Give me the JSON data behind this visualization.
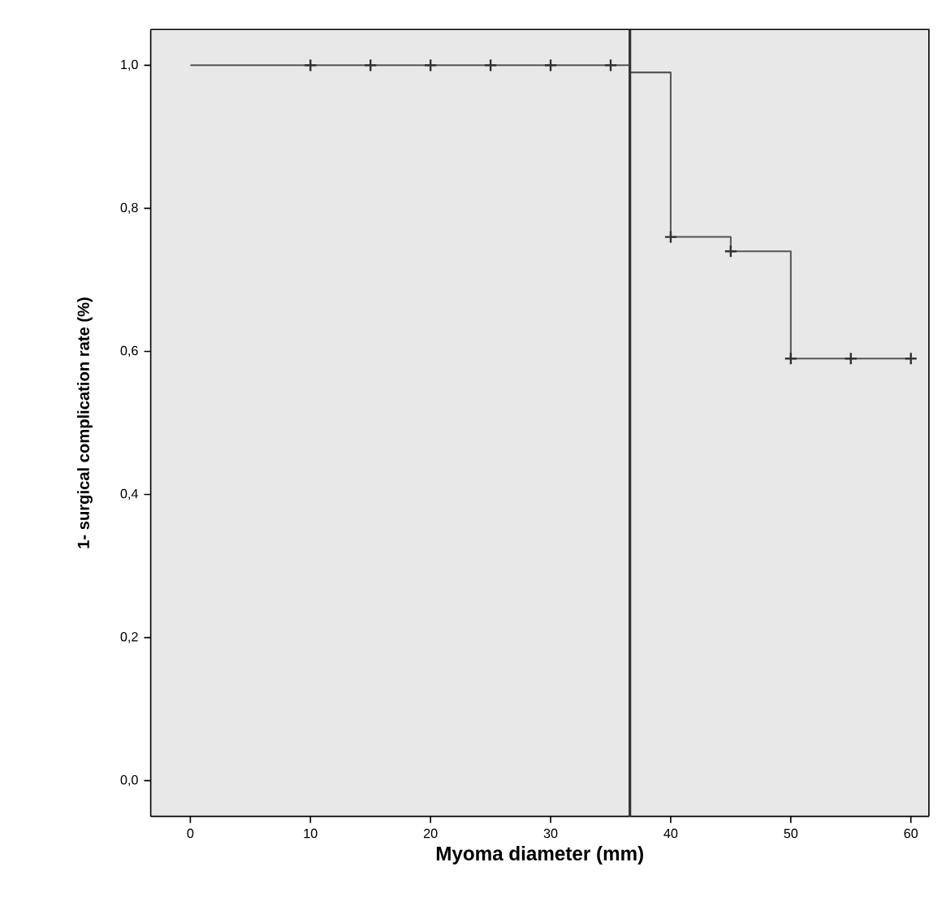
{
  "chart_data": {
    "type": "step",
    "xlabel": "Myoma diameter (mm)",
    "ylabel": "1- surgical complication rate (%)",
    "xlim": [
      -3.3,
      61.5
    ],
    "ylim": [
      -0.05,
      1.05
    ],
    "xticks": [
      0,
      10,
      20,
      30,
      40,
      50,
      60
    ],
    "yticks": [
      {
        "value": 0,
        "label": "0,0"
      },
      {
        "value": 0.2,
        "label": "0,2"
      },
      {
        "value": 0.4,
        "label": "0,4"
      },
      {
        "value": 0.6,
        "label": "0,6"
      },
      {
        "value": 0.8,
        "label": "0,8"
      },
      {
        "value": 1,
        "label": "1,0"
      }
    ],
    "series": [
      {
        "color": "#555555",
        "x": [
          0,
          36.6,
          40,
          45,
          50,
          60
        ],
        "values": [
          1.0,
          0.99,
          0.76,
          0.74,
          0.59,
          0.59
        ],
        "marker": "none"
      },
      {
        "type": "scatter",
        "color": "#333333",
        "x": [
          10,
          15,
          20,
          25,
          30,
          35,
          40,
          45,
          50,
          55,
          60
        ],
        "values": [
          1,
          1,
          1,
          1,
          1,
          1,
          0.76,
          0.74,
          0.59,
          0.59,
          0.59
        ],
        "marker": "cross"
      }
    ],
    "ref_lines": [
      {
        "axis": "x",
        "value": 36.6,
        "color": "#333333"
      }
    ]
  }
}
